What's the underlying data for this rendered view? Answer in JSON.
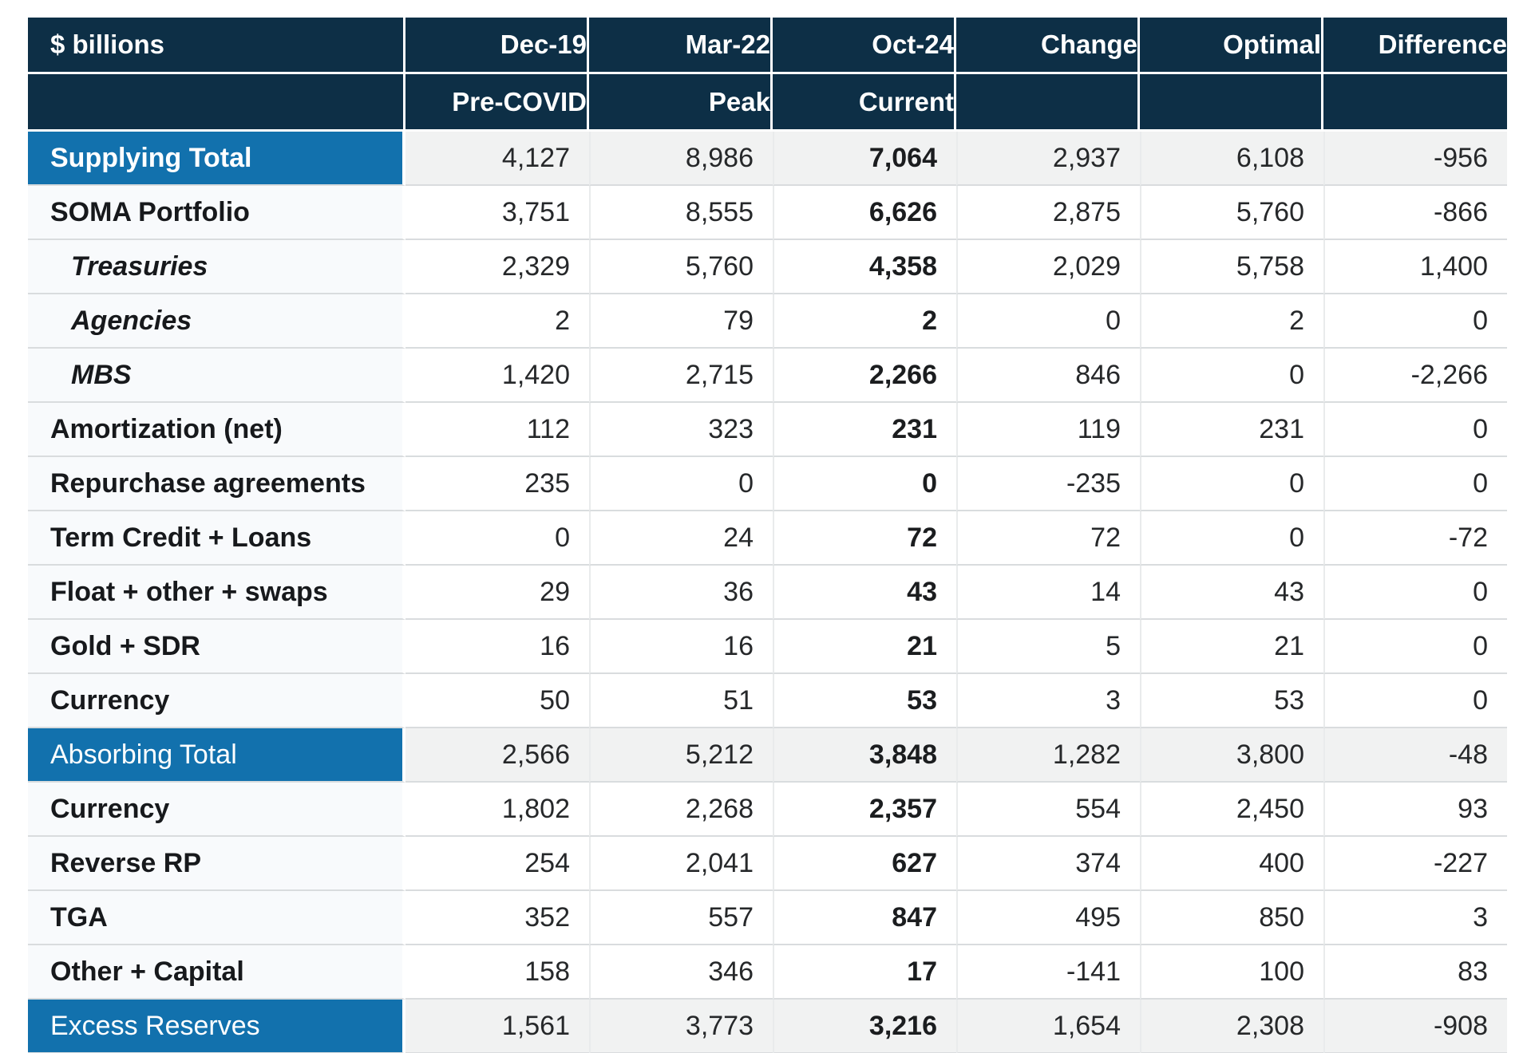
{
  "colors": {
    "header_bg": "#0d2f46",
    "highlight_bg": "#1271ad",
    "total_row_bg": "#f1f2f2",
    "label_col_bg": "#f8fafc",
    "row_border": "#d9dcde",
    "header_text": "#ffffff",
    "body_text": "#26282a"
  },
  "chart_data": {
    "type": "table",
    "title": "$ billions",
    "columns": [
      {
        "key": "dec19",
        "label": "Dec-19",
        "sublabel": "Pre-COVID"
      },
      {
        "key": "mar22",
        "label": "Mar-22",
        "sublabel": "Peak"
      },
      {
        "key": "oct24",
        "label": "Oct-24",
        "sublabel": "Current"
      },
      {
        "key": "change",
        "label": "Change",
        "sublabel": ""
      },
      {
        "key": "optimal",
        "label": "Optimal",
        "sublabel": ""
      },
      {
        "key": "difference",
        "label": "Difference",
        "sublabel": ""
      }
    ],
    "bold_column_key": "oct24",
    "rows": [
      {
        "label": "Supplying Total",
        "style": "total-bold",
        "values": [
          "4,127",
          "8,986",
          "7,064",
          "2,937",
          "6,108",
          "-956"
        ]
      },
      {
        "label": "SOMA Portfolio",
        "style": "normal",
        "values": [
          "3,751",
          "8,555",
          "6,626",
          "2,875",
          "5,760",
          "-866"
        ]
      },
      {
        "label": "Treasuries",
        "style": "sub",
        "values": [
          "2,329",
          "5,760",
          "4,358",
          "2,029",
          "5,758",
          "1,400"
        ]
      },
      {
        "label": "Agencies",
        "style": "sub",
        "values": [
          "2",
          "79",
          "2",
          "0",
          "2",
          "0"
        ]
      },
      {
        "label": "MBS",
        "style": "sub",
        "values": [
          "1,420",
          "2,715",
          "2,266",
          "846",
          "0",
          "-2,266"
        ]
      },
      {
        "label": "Amortization (net)",
        "style": "normal",
        "values": [
          "112",
          "323",
          "231",
          "119",
          "231",
          "0"
        ]
      },
      {
        "label": "Repurchase agreements",
        "style": "normal",
        "values": [
          "235",
          "0",
          "0",
          "-235",
          "0",
          "0"
        ]
      },
      {
        "label": "Term Credit + Loans",
        "style": "normal",
        "values": [
          "0",
          "24",
          "72",
          "72",
          "0",
          "-72"
        ]
      },
      {
        "label": "Float + other + swaps",
        "style": "normal",
        "values": [
          "29",
          "36",
          "43",
          "14",
          "43",
          "0"
        ]
      },
      {
        "label": "Gold + SDR",
        "style": "normal",
        "values": [
          "16",
          "16",
          "21",
          "5",
          "21",
          "0"
        ]
      },
      {
        "label": "Currency",
        "style": "normal",
        "values": [
          "50",
          "51",
          "53",
          "3",
          "53",
          "0"
        ]
      },
      {
        "label": "Absorbing Total",
        "style": "total",
        "values": [
          "2,566",
          "5,212",
          "3,848",
          "1,282",
          "3,800",
          "-48"
        ]
      },
      {
        "label": "Currency",
        "style": "normal",
        "values": [
          "1,802",
          "2,268",
          "2,357",
          "554",
          "2,450",
          "93"
        ]
      },
      {
        "label": "Reverse RP",
        "style": "normal",
        "values": [
          "254",
          "2,041",
          "627",
          "374",
          "400",
          "-227"
        ]
      },
      {
        "label": "TGA",
        "style": "normal",
        "values": [
          "352",
          "557",
          "847",
          "495",
          "850",
          "3"
        ]
      },
      {
        "label": "Other + Capital",
        "style": "normal",
        "values": [
          "158",
          "346",
          "17",
          "-141",
          "100",
          "83"
        ]
      },
      {
        "label": "Excess Reserves",
        "style": "total",
        "values": [
          "1,561",
          "3,773",
          "3,216",
          "1,654",
          "2,308",
          "-908"
        ]
      }
    ]
  }
}
